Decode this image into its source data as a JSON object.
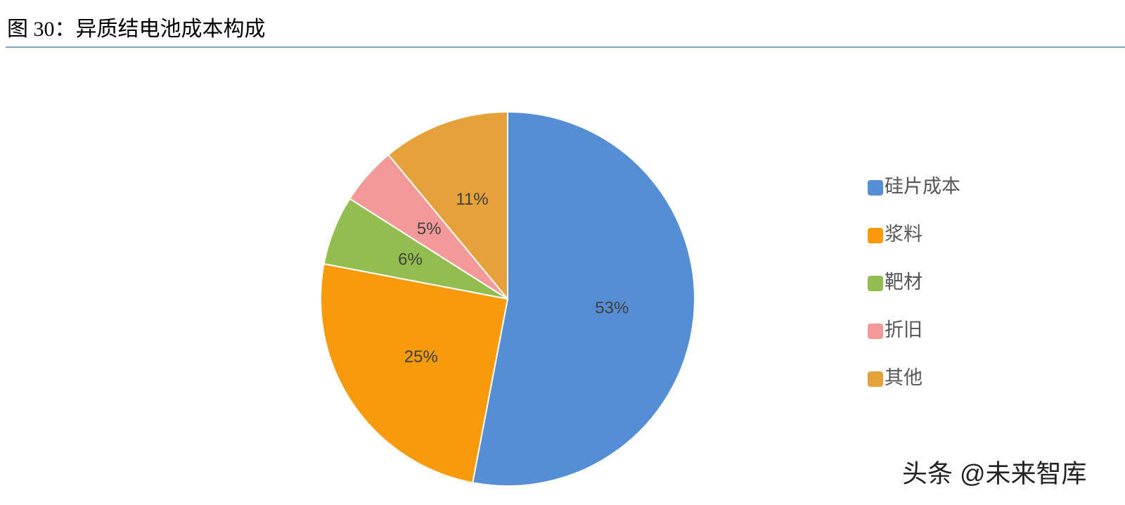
{
  "chart_data": {
    "type": "pie",
    "title": "图 30：异质结电池成本构成",
    "categories": [
      "硅片成本",
      "浆料",
      "靶材",
      "折旧",
      "其他"
    ],
    "values": [
      53,
      25,
      6,
      5,
      11
    ],
    "value_labels": [
      "53%",
      "25%",
      "6%",
      "5%",
      "11%"
    ],
    "colors": [
      "#558ed5",
      "#f79a0c",
      "#92bd4f",
      "#f4999a",
      "#e5a13a"
    ],
    "legend": "right",
    "watermark": "头条 @未来智库"
  }
}
